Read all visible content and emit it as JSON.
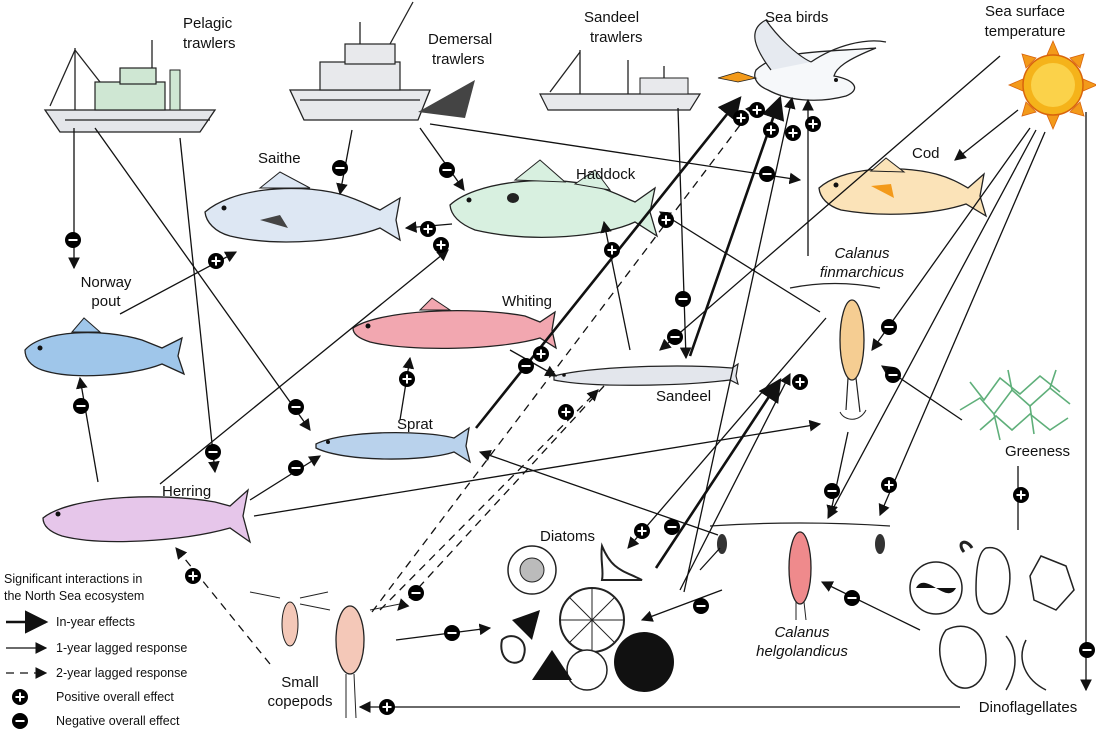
{
  "labels": {
    "pelagic_trawlers": [
      "Pelagic",
      "trawlers"
    ],
    "demersal_trawlers": [
      "Demersal",
      "trawlers"
    ],
    "sandeel_trawlers": [
      "Sandeel",
      "trawlers"
    ],
    "sea_birds": "Sea birds",
    "sea_surface_temperature": [
      "Sea surface",
      "temperature"
    ],
    "saithe": "Saithe",
    "haddock": "Haddock",
    "cod": "Cod",
    "calanus_finmarchicus": [
      "Calanus",
      "finmarchicus"
    ],
    "norway_pout": [
      "Norway",
      "pout"
    ],
    "whiting": "Whiting",
    "sandeel": "Sandeel",
    "sprat": "Sprat",
    "herring": "Herring",
    "greeness": "Greeness",
    "diatoms": "Diatoms",
    "calanus_helgolandicus": [
      "Calanus",
      "helgolandicus"
    ],
    "small_copepods": [
      "Small",
      "copepods"
    ],
    "dinoflagellates": "Dinoflagellates"
  },
  "legend": {
    "title": [
      "Significant interactions in",
      "the North Sea ecosystem"
    ],
    "in_year": "In-year effects",
    "lag1": "1-year lagged response",
    "lag2": "2-year lagged response",
    "positive": "Positive overall effect",
    "negative": "Negative overall effect"
  },
  "colors": {
    "positive": "#2e8b3e",
    "negative": "#c0144a",
    "sun": "#f39a1a",
    "saithe_fill": "#dde7f3",
    "haddock_fill": "#d8f0e0",
    "cod_fill": "#fbe3b8",
    "whiting_fill": "#f2a7b0",
    "sandeel_fill": "#e3e6ec",
    "sprat_fill": "#b9d2ec",
    "herring_fill": "#e6c6ea",
    "pout_fill": "#9fc6ea",
    "greeness": "#5faf7a"
  },
  "icons": [
    "trawler-ship-icon",
    "sea-bird-icon",
    "sun-icon",
    "fish-icon",
    "copepod-icon",
    "diatom-icon",
    "dinoflagellate-icon",
    "algae-icon"
  ]
}
